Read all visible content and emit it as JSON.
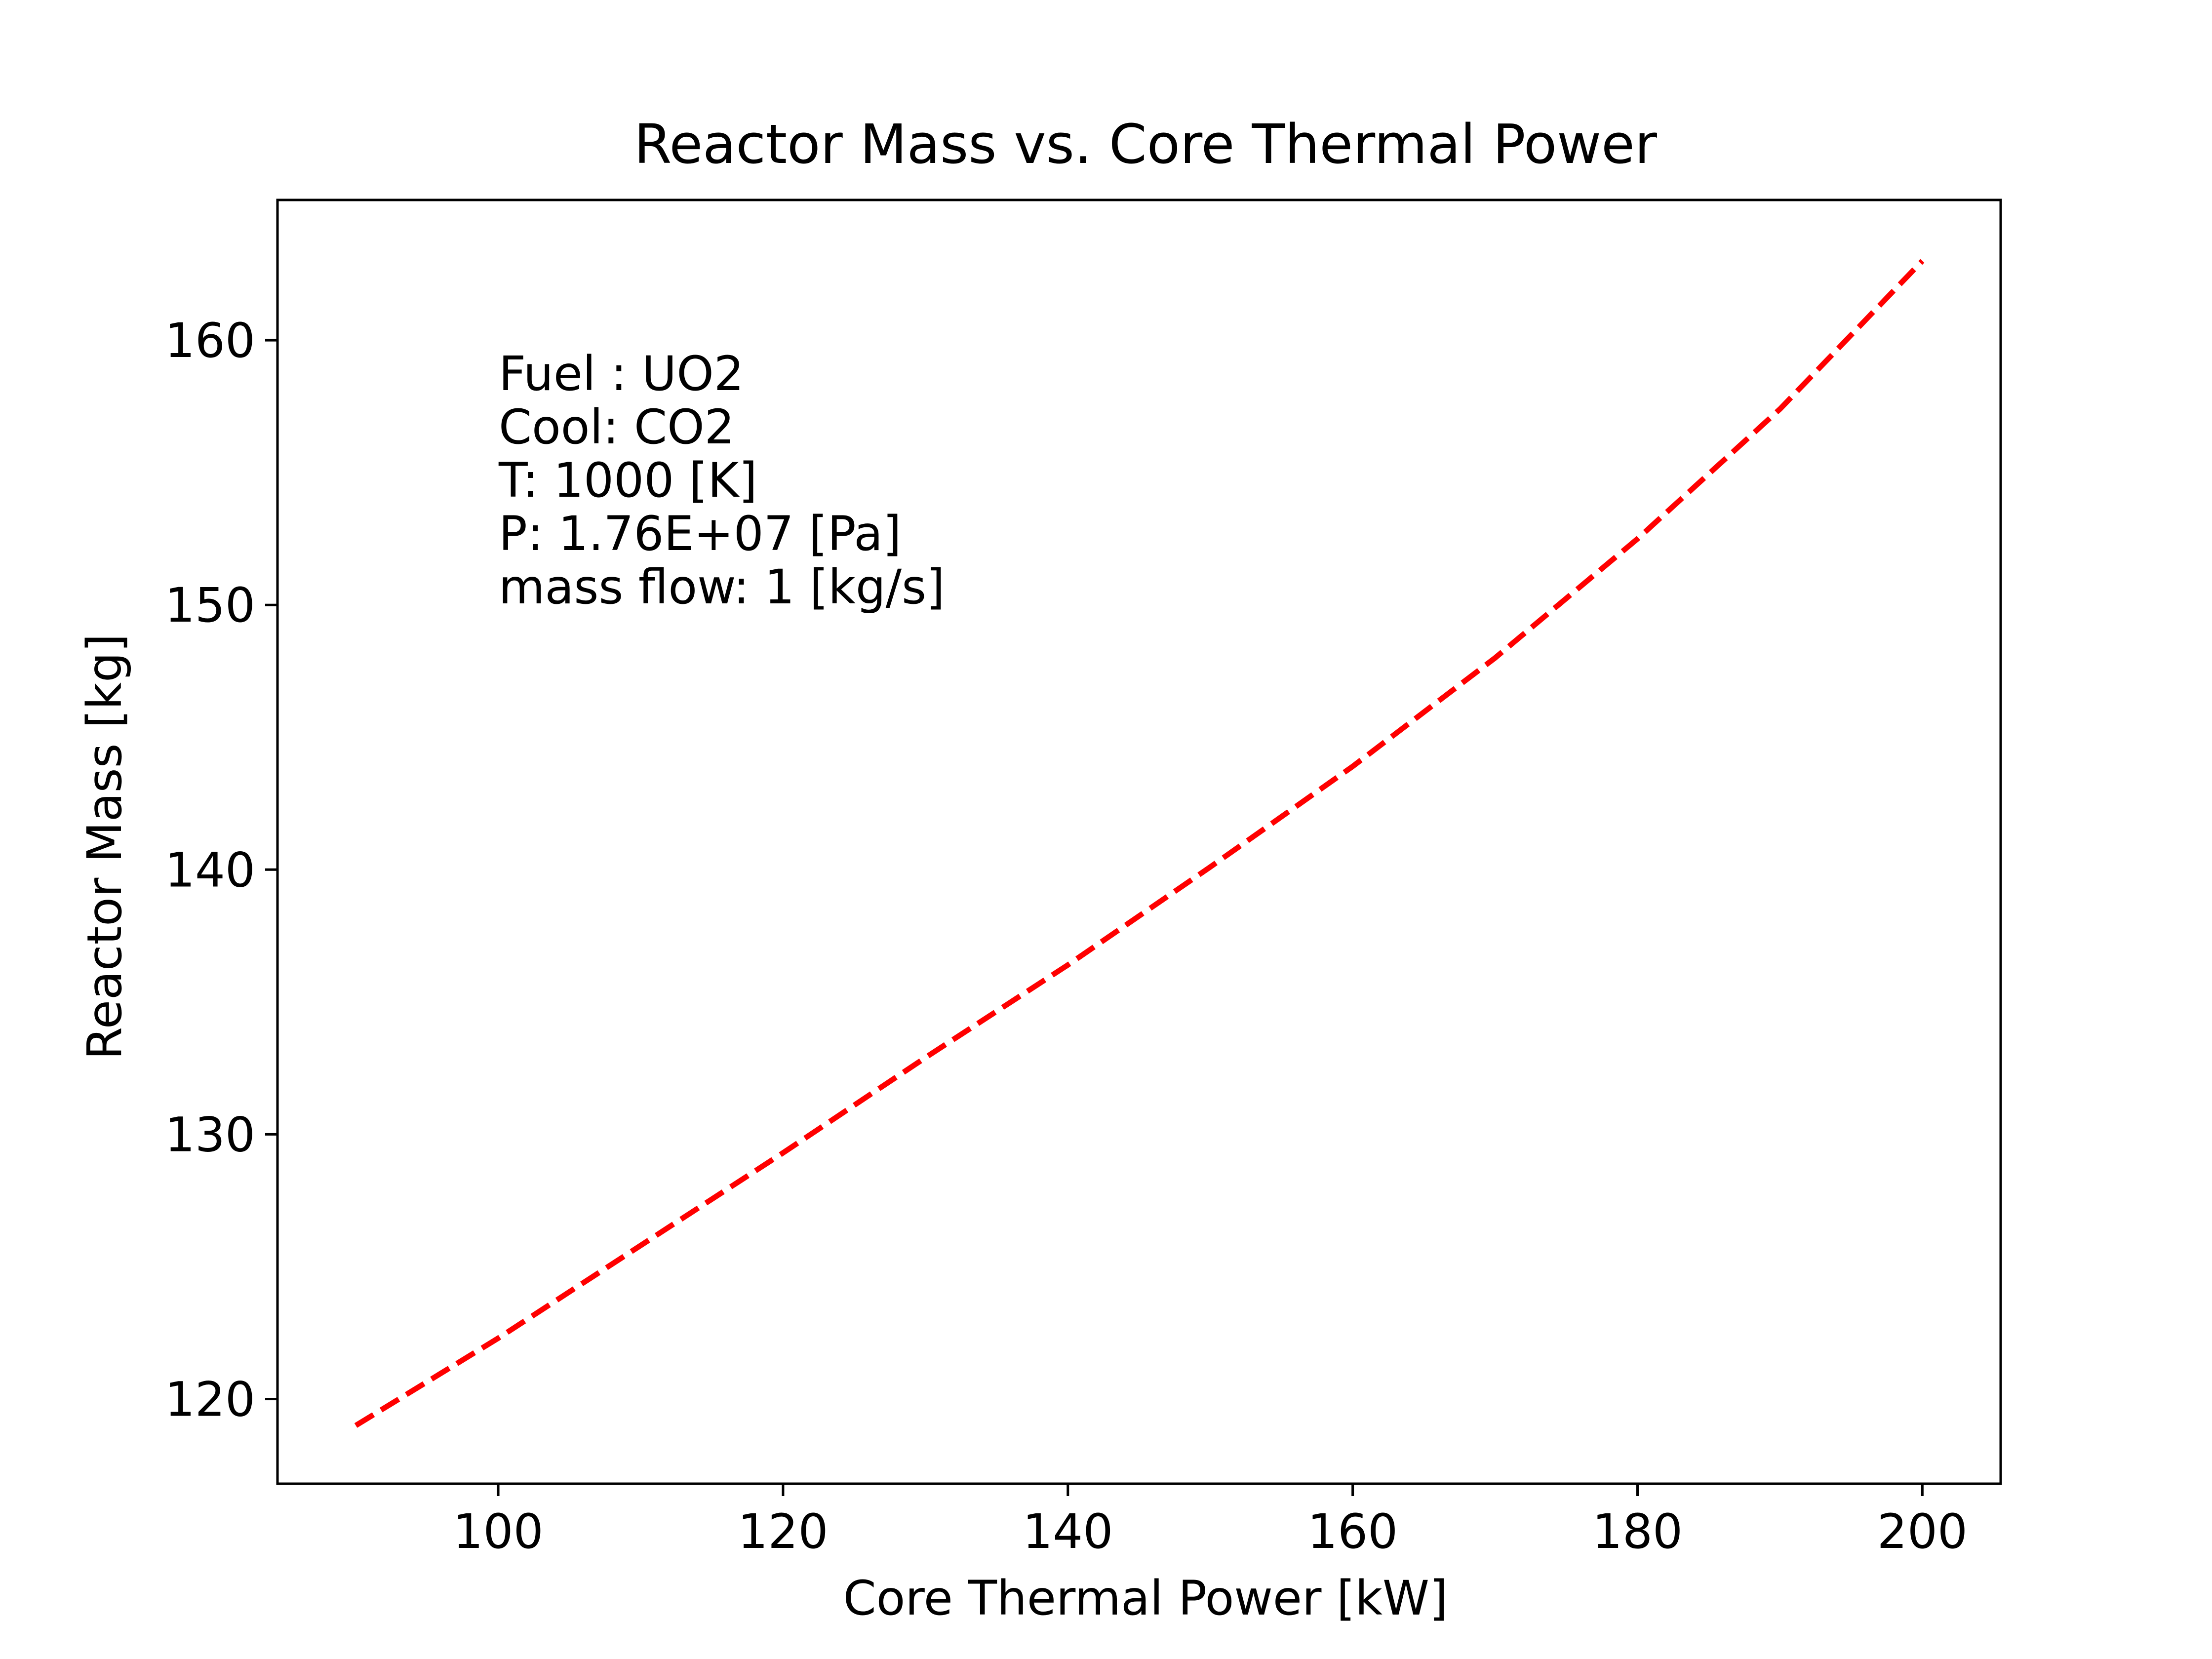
{
  "chart_data": {
    "type": "line",
    "title": "Reactor Mass vs. Core Thermal Power",
    "xlabel": "Core Thermal Power [kW]",
    "ylabel": "Reactor Mass [kg]",
    "xlim": [
      84.5,
      205.5
    ],
    "ylim": [
      116.8,
      165.3
    ],
    "xticks": [
      100,
      120,
      140,
      160,
      180,
      200
    ],
    "yticks": [
      120,
      130,
      140,
      150,
      160
    ],
    "grid": false,
    "annotation_lines": [
      "Fuel : UO2",
      "Cool: CO2",
      "T: 1000 [K]",
      "P: 1.76E+07 [Pa]",
      "mass flow: 1 [kg/s]"
    ],
    "series": [
      {
        "color": "#ff0000",
        "line_style": "dashed",
        "x": [
          90,
          100,
          110,
          120,
          130,
          140,
          150,
          160,
          170,
          180,
          190,
          200
        ],
        "y": [
          119.0,
          122.3,
          125.8,
          129.3,
          132.9,
          136.4,
          140.1,
          143.9,
          148.0,
          152.5,
          157.4,
          163.0
        ]
      }
    ]
  }
}
